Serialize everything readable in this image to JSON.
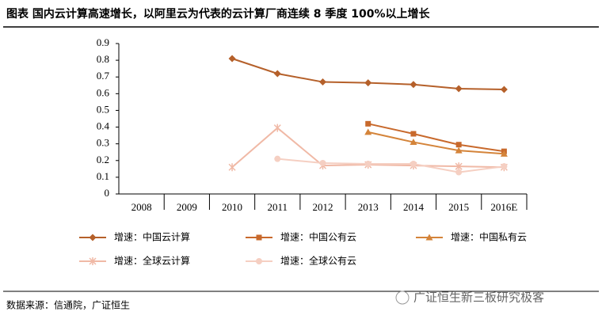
{
  "chart_data": {
    "type": "line",
    "title": "图表 国内云计算高速增长，以阿里云为代表的云计算厂商连续 8 季度 100%以上增长",
    "categories": [
      "2008",
      "2009",
      "2010",
      "2011",
      "2012",
      "2013",
      "2014",
      "2015",
      "2016E"
    ],
    "ylim": [
      0,
      0.9
    ],
    "yticks": [
      0,
      0.1,
      0.2,
      0.3,
      0.4,
      0.5,
      0.6,
      0.7,
      0.8,
      0.9
    ],
    "series": [
      {
        "name": "增速：中国云计算",
        "color": "#b5602a",
        "marker": "diamond",
        "values": [
          null,
          null,
          0.81,
          0.72,
          0.67,
          0.665,
          0.655,
          0.63,
          0.625
        ]
      },
      {
        "name": "增速：中国公有云",
        "color": "#c8692c",
        "marker": "square",
        "values": [
          null,
          null,
          null,
          null,
          null,
          0.42,
          0.36,
          0.295,
          0.255
        ]
      },
      {
        "name": "增速：中国私有云",
        "color": "#d4843a",
        "marker": "triangle",
        "values": [
          null,
          null,
          null,
          null,
          null,
          0.37,
          0.31,
          0.26,
          0.24
        ]
      },
      {
        "name": "增速：全球云计算",
        "color": "#f0b9a6",
        "marker": "star",
        "values": [
          null,
          null,
          0.16,
          0.395,
          0.17,
          0.175,
          0.17,
          0.165,
          0.16
        ]
      },
      {
        "name": "增速：全球公有云",
        "color": "#f5cfc2",
        "marker": "circle",
        "values": [
          null,
          null,
          null,
          0.21,
          0.185,
          0.18,
          0.18,
          0.13,
          0.165
        ]
      }
    ],
    "source": "数据来源：信通院，广证恒生",
    "watermark": "广证恒生新三板研究极客"
  }
}
